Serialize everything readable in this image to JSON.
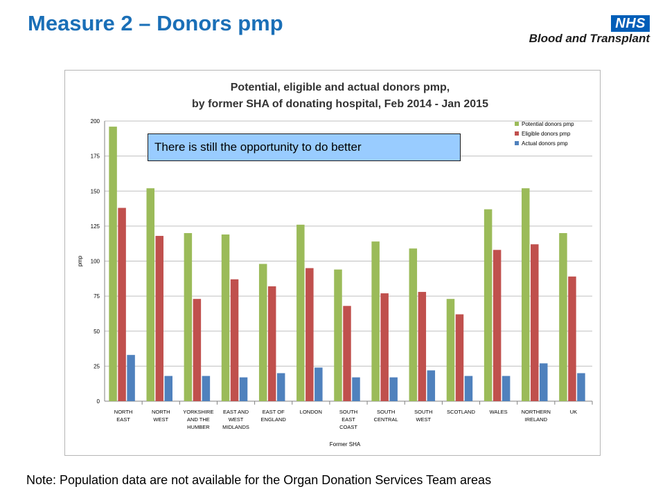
{
  "slide": {
    "title": "Measure 2 – Donors pmp",
    "note": "Note: Population data are not available for the Organ Donation Services Team areas"
  },
  "logo": {
    "badge": "NHS",
    "org": "Blood and Transplant"
  },
  "callout": {
    "text": "There is still the opportunity to do better"
  },
  "chart_data": {
    "type": "bar",
    "title_lines": [
      "Potential, eligible and actual donors pmp,",
      "by former SHA of donating hospital, Feb 2014 - Jan 2015"
    ],
    "xlabel": "Former SHA",
    "ylabel": "pmp",
    "ylim": [
      0,
      200
    ],
    "yticks": [
      0,
      25,
      50,
      75,
      100,
      125,
      150,
      175,
      200
    ],
    "grid": true,
    "legend_position": "top-right",
    "categories": [
      [
        "NORTH",
        "EAST"
      ],
      [
        "NORTH",
        "WEST"
      ],
      [
        "YORKSHIRE",
        "AND THE",
        "HUMBER"
      ],
      [
        "EAST AND",
        "WEST",
        "MIDLANDS"
      ],
      [
        "EAST OF",
        "ENGLAND"
      ],
      [
        "LONDON"
      ],
      [
        "SOUTH",
        "EAST",
        "COAST"
      ],
      [
        "SOUTH",
        "CENTRAL"
      ],
      [
        "SOUTH",
        "WEST"
      ],
      [
        "SCOTLAND"
      ],
      [
        "WALES"
      ],
      [
        "NORTHERN",
        "IRELAND"
      ],
      [
        "UK"
      ]
    ],
    "series": [
      {
        "name": "Potential donors pmp",
        "color": "#9bbb59",
        "values": [
          196,
          152,
          120,
          119,
          98,
          126,
          94,
          114,
          109,
          73,
          137,
          152,
          120
        ]
      },
      {
        "name": "Eligible donors pmp",
        "color": "#c0504d",
        "values": [
          138,
          118,
          73,
          87,
          82,
          95,
          68,
          77,
          78,
          62,
          108,
          112,
          89
        ]
      },
      {
        "name": "Actual donors pmp",
        "color": "#4f81bd",
        "values": [
          33,
          18,
          18,
          17,
          20,
          24,
          17,
          17,
          22,
          18,
          18,
          27,
          20
        ]
      }
    ]
  }
}
